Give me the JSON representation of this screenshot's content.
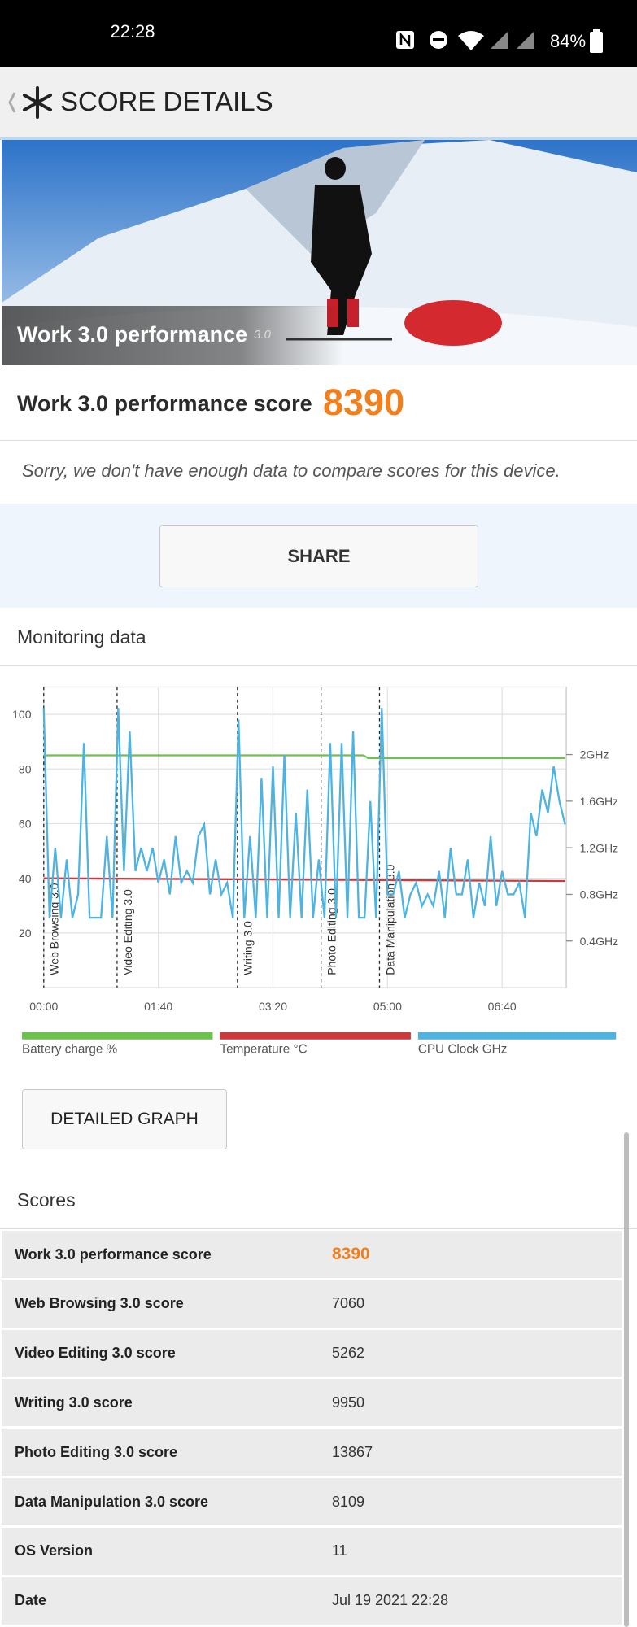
{
  "status_bar": {
    "time": "22:28",
    "battery": "84%"
  },
  "header": {
    "title": "SCORE DETAILS"
  },
  "hero": {
    "title": "Work 3.0 performance",
    "version": "3.0"
  },
  "score": {
    "label": "Work 3.0 performance score",
    "value": 8390
  },
  "notice": "Sorry, we don't have enough data to compare scores for this device.",
  "share_button": "SHARE",
  "monitoring": {
    "title": "Monitoring data",
    "detailed_graph_button": "DETAILED GRAPH"
  },
  "chart_data": {
    "type": "line",
    "xlim": [
      0,
      456
    ],
    "xticks": [
      {
        "value": 0,
        "label": "00:00"
      },
      {
        "value": 100,
        "label": "01:40"
      },
      {
        "value": 200,
        "label": "03:20"
      },
      {
        "value": 300,
        "label": "05:00"
      },
      {
        "value": 400,
        "label": "06:40"
      }
    ],
    "ylim": [
      0,
      110
    ],
    "yticks": [
      20,
      40,
      60,
      80,
      100
    ],
    "y2lim": [
      0,
      2.58
    ],
    "y2ticks": [
      {
        "value": 0.4,
        "label": "0.4GHz"
      },
      {
        "value": 0.8,
        "label": "0.8GHz"
      },
      {
        "value": 1.2,
        "label": "1.2GHz"
      },
      {
        "value": 1.6,
        "label": "1.6GHz"
      },
      {
        "value": 2,
        "label": "2GHz"
      }
    ],
    "grid": true,
    "markers": [
      {
        "x": 0,
        "label": "Web Browsing 3.0"
      },
      {
        "x": 64,
        "label": "Video Editing 3.0"
      },
      {
        "x": 169,
        "label": "Writing 3.0"
      },
      {
        "x": 242,
        "label": "Photo Editing 3.0"
      },
      {
        "x": 293,
        "label": "Data Manipulation 3.0"
      }
    ],
    "series": [
      {
        "name": "Battery charge %",
        "color": "#6cc24a",
        "x": [
          0,
          279,
          283,
          455
        ],
        "values": [
          85,
          85,
          84,
          84
        ]
      },
      {
        "name": "Temperature °C",
        "color": "#d0393b",
        "x": [
          0,
          455
        ],
        "values": [
          40,
          39
        ]
      },
      {
        "name": "CPU Clock GHz",
        "color": "#4db3e0",
        "axis": "y2",
        "x": [
          0,
          5,
          10,
          15,
          20,
          25,
          30,
          35,
          40,
          45,
          50,
          55,
          60,
          65,
          70,
          75,
          80,
          85,
          90,
          95,
          100,
          105,
          110,
          115,
          120,
          125,
          130,
          135,
          140,
          145,
          150,
          155,
          160,
          165,
          170,
          175,
          180,
          185,
          190,
          195,
          200,
          205,
          210,
          215,
          220,
          225,
          230,
          235,
          240,
          245,
          250,
          255,
          260,
          265,
          270,
          275,
          280,
          285,
          290,
          295,
          300,
          305,
          310,
          315,
          320,
          325,
          330,
          335,
          340,
          345,
          350,
          355,
          360,
          365,
          370,
          375,
          380,
          385,
          390,
          395,
          400,
          405,
          410,
          415,
          420,
          425,
          430,
          435,
          440,
          445,
          450,
          455
        ],
        "values": [
          2.4,
          0.6,
          1.2,
          0.6,
          1.1,
          0.6,
          0.8,
          2.1,
          0.6,
          0.6,
          0.6,
          1.3,
          0.6,
          2.4,
          1.0,
          2.2,
          1.0,
          1.2,
          1.0,
          1.2,
          0.9,
          1.1,
          0.8,
          1.3,
          0.9,
          1.0,
          0.9,
          1.3,
          1.4,
          0.8,
          1.1,
          0.8,
          0.9,
          0.6,
          2.3,
          0.6,
          1.3,
          0.6,
          1.8,
          0.6,
          1.9,
          0.6,
          2.0,
          0.6,
          1.5,
          0.6,
          1.7,
          0.6,
          1.1,
          0.6,
          2.1,
          0.6,
          2.1,
          0.6,
          2.2,
          0.6,
          0.6,
          1.6,
          0.6,
          2.4,
          0.8,
          0.8,
          1.0,
          0.6,
          0.8,
          0.9,
          0.7,
          0.8,
          0.7,
          1.0,
          0.6,
          1.2,
          0.8,
          0.8,
          1.1,
          0.6,
          0.9,
          0.7,
          1.3,
          0.7,
          1.0,
          0.8,
          0.8,
          0.9,
          0.6,
          1.5,
          1.3,
          1.7,
          1.5,
          1.9,
          1.6,
          1.4
        ]
      }
    ]
  },
  "scores": {
    "title": "Scores",
    "rows": [
      [
        "Work 3.0 performance score",
        8390
      ],
      [
        "Web Browsing 3.0 score",
        7060
      ],
      [
        "Video Editing 3.0 score",
        5262
      ],
      [
        "Writing 3.0 score",
        9950
      ],
      [
        "Photo Editing 3.0 score",
        13867
      ],
      [
        "Data Manipulation 3.0 score",
        8109
      ],
      [
        "OS Version",
        11
      ],
      [
        "Date",
        "Jul 19 2021 22:28"
      ]
    ]
  }
}
